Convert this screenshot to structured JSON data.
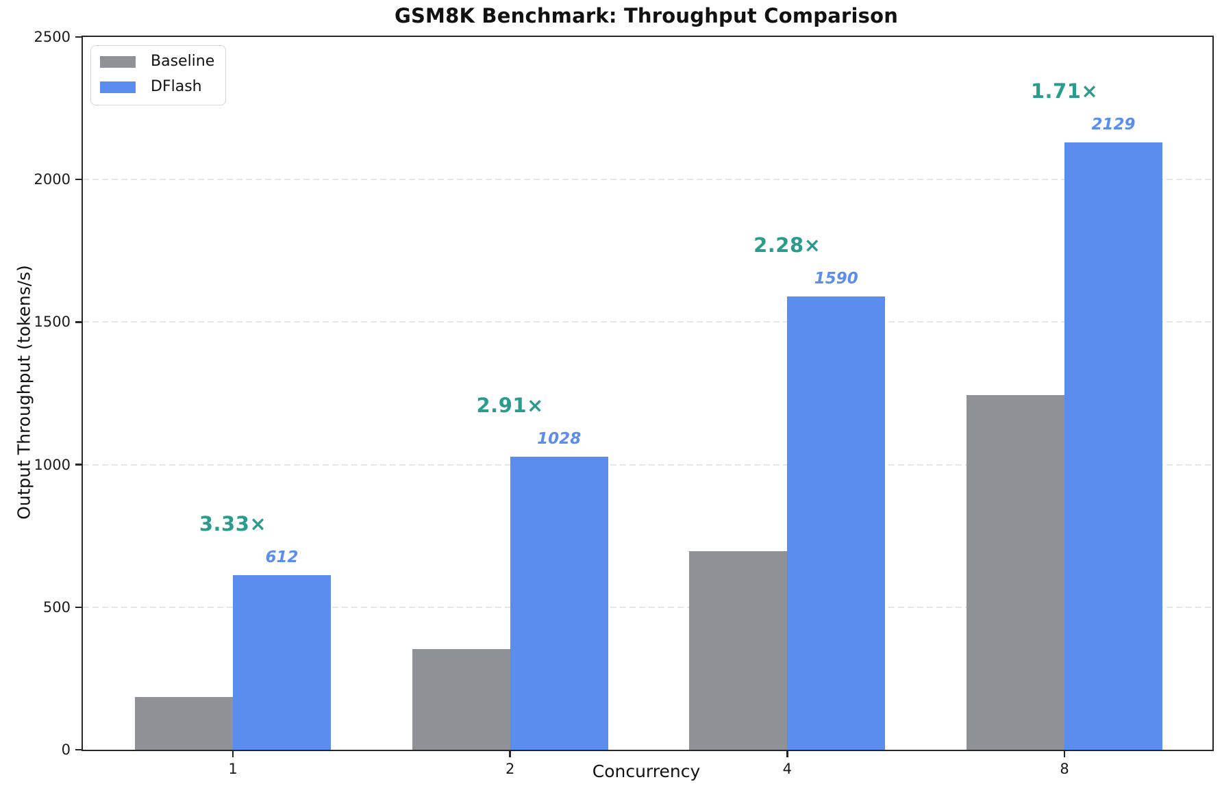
{
  "chart_data": {
    "type": "bar",
    "title": "GSM8K Benchmark: Throughput Comparison",
    "xlabel": "Concurrency",
    "ylabel": "Output Throughput (tokens/s)",
    "categories": [
      "1",
      "2",
      "4",
      "8"
    ],
    "series": [
      {
        "name": "Baseline",
        "color": "#8e9196",
        "values": [
          184,
          353,
          697,
          1245
        ]
      },
      {
        "name": "DFlash",
        "color": "#5b8dee",
        "values": [
          612,
          1028,
          1590,
          2129
        ]
      }
    ],
    "value_labels": [
      "612",
      "1028",
      "1590",
      "2129"
    ],
    "value_label_color": "#5b8dee",
    "speedup_labels": [
      "3.33×",
      "2.91×",
      "2.28×",
      "1.71×"
    ],
    "speedup_label_color": "#2a9b8d",
    "ylim": [
      0,
      2500
    ],
    "yticks": [
      0,
      500,
      1000,
      1500,
      2000,
      2500
    ],
    "grid": "horizontal dashed",
    "grid_color": "#e6e6e6",
    "legend_position": "upper-left",
    "spine_color": "#262626"
  }
}
